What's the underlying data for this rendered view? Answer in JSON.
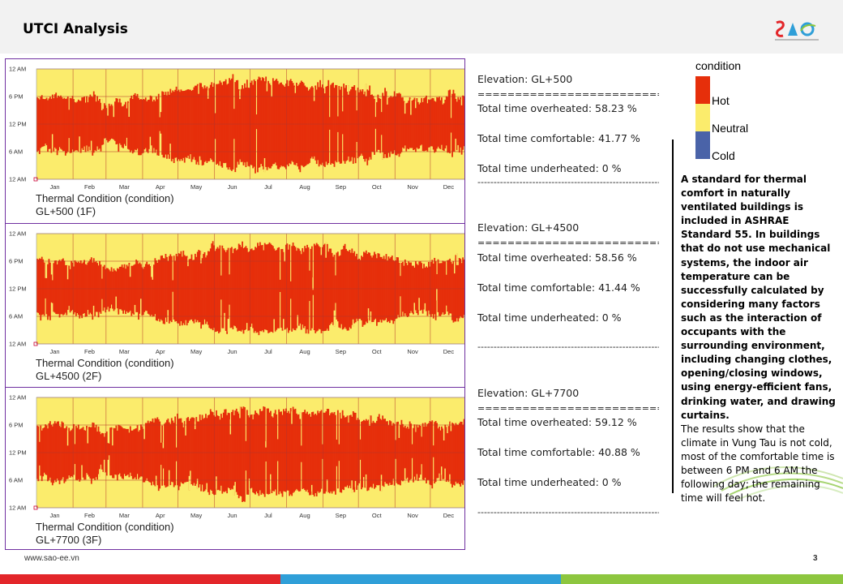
{
  "header": {
    "title": "UTCI Analysis",
    "logo_icon": "sao-logo-icon"
  },
  "colors": {
    "hot": "#e62f0b",
    "neutral": "#fbec6c",
    "cold": "#4a63a8",
    "grid": "#b5342a",
    "footer_red": "#e3262a",
    "footer_blue": "#2f9fd8",
    "footer_green": "#8dc63f"
  },
  "legend": {
    "title": "condition",
    "items": [
      {
        "label": "Hot",
        "color": "#e62f0b"
      },
      {
        "label": "Neutral",
        "color": "#fbec6c"
      },
      {
        "label": "Cold",
        "color": "#4a63a8"
      }
    ]
  },
  "chart_data": [
    {
      "type": "heatmap",
      "title": "Thermal Condition (condition)",
      "subtitle": "GL+500 (1F)",
      "x_ticks": [
        "Jan",
        "Feb",
        "Mar",
        "Apr",
        "May",
        "Jun",
        "Jul",
        "Aug",
        "Sep",
        "Oct",
        "Nov",
        "Dec"
      ],
      "y_ticks": [
        "12 AM",
        "6 PM",
        "12 PM",
        "6 AM",
        "12 AM"
      ],
      "categories": [
        "Hot",
        "Neutral",
        "Cold"
      ],
      "values": {
        "hot_percent": 58.23,
        "neutral_percent": 41.77,
        "cold_percent": 0
      }
    },
    {
      "type": "heatmap",
      "title": "Thermal Condition (condition)",
      "subtitle": "GL+4500 (2F)",
      "x_ticks": [
        "Jan",
        "Feb",
        "Mar",
        "Apr",
        "May",
        "Jun",
        "Jul",
        "Aug",
        "Sep",
        "Oct",
        "Nov",
        "Dec"
      ],
      "y_ticks": [
        "12 AM",
        "6 PM",
        "12 PM",
        "6 AM",
        "12 AM"
      ],
      "categories": [
        "Hot",
        "Neutral",
        "Cold"
      ],
      "values": {
        "hot_percent": 58.56,
        "neutral_percent": 41.44,
        "cold_percent": 0
      }
    },
    {
      "type": "heatmap",
      "title": "Thermal Condition (condition)",
      "subtitle": "GL+7700 (3F)",
      "x_ticks": [
        "Jan",
        "Feb",
        "Mar",
        "Apr",
        "May",
        "Jun",
        "Jul",
        "Aug",
        "Sep",
        "Oct",
        "Nov",
        "Dec"
      ],
      "y_ticks": [
        "12 AM",
        "6 PM",
        "12 PM",
        "6 AM",
        "12 AM"
      ],
      "categories": [
        "Hot",
        "Neutral",
        "Cold"
      ],
      "values": {
        "hot_percent": 59.12,
        "neutral_percent": 40.88,
        "cold_percent": 0
      }
    }
  ],
  "stats": [
    {
      "elevation": "Elevation: GL+500",
      "separator": "===============================",
      "overheated": "Total time overheated: 58.23 %",
      "comfortable": "Total time comfortable: 41.77 %",
      "underheated": "Total time underheated: 0 %",
      "dash": "---------------------------------------------------------"
    },
    {
      "elevation": "Elevation: GL+4500",
      "separator": "===============================",
      "overheated": "Total time overheated: 58.56 %",
      "comfortable": "Total time comfortable: 41.44 %",
      "underheated": "Total time underheated: 0 %",
      "dash": "---------------------------------------------------------"
    },
    {
      "elevation": "Elevation: GL+7700",
      "separator": "===============================",
      "overheated": "Total time overheated: 59.12 %",
      "comfortable": "Total time comfortable: 40.88 %",
      "underheated": "Total time underheated: 0 %",
      "dash": "---------------------------------------------------------"
    }
  ],
  "description": {
    "bold": "A standard for thermal comfort in naturally ventilated buildings is included in ASHRAE Standard 55. In buildings that do not use mechanical systems, the indoor air temperature can be successfully calculated by considering many factors such as the interaction of occupants with the surrounding environment, including changing clothes, opening/closing windows, using energy-efficient fans, drinking water, and drawing curtains.",
    "normal": "The results show that the climate in Vung Tau is not cold, most of the comfortable time is between 6 PM and 6 AM the following day; the remaining time will feel hot."
  },
  "footer": {
    "url": "www.sao-ee.vn",
    "page": "3"
  }
}
